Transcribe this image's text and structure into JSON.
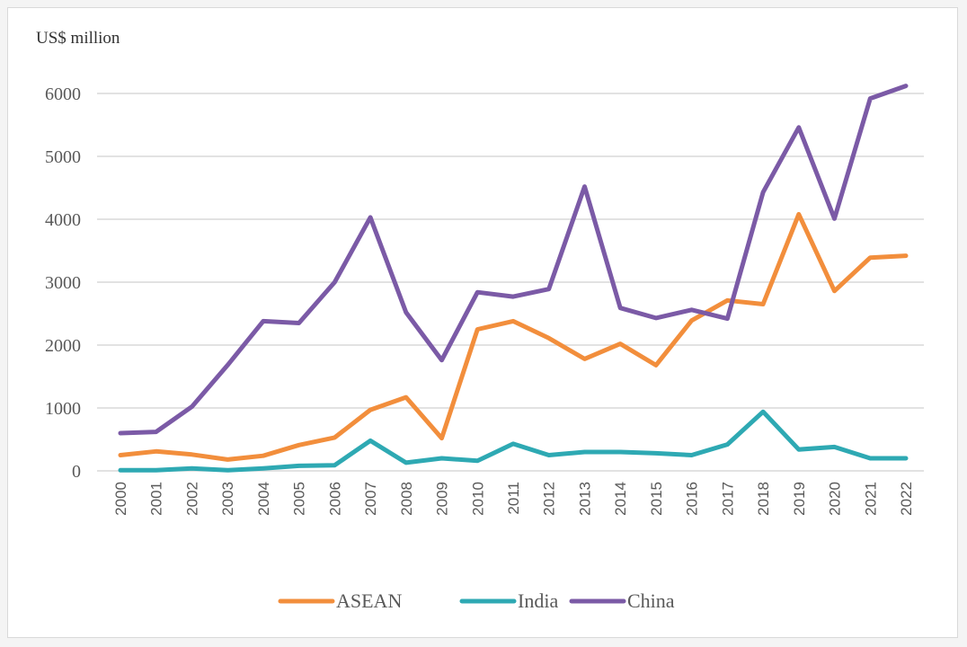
{
  "chart_data": {
    "type": "line",
    "title": "",
    "ylabel": "US$ million",
    "xlabel": "",
    "ylim": [
      0,
      6000
    ],
    "yticks": [
      "0",
      "1000",
      "2000",
      "3000",
      "4000",
      "5000",
      "6000"
    ],
    "grid": true,
    "legend_position": "bottom",
    "categories": [
      "2000",
      "2001",
      "2002",
      "2003",
      "2004",
      "2005",
      "2006",
      "2007",
      "2008",
      "2009",
      "2010",
      "2011",
      "2012",
      "2013",
      "2014",
      "2015",
      "2016",
      "2017",
      "2018",
      "2019",
      "2020",
      "2021",
      "2022"
    ],
    "series": [
      {
        "name": "ASEAN",
        "color": "#f28e3c",
        "values": [
          250,
          310,
          260,
          180,
          240,
          410,
          530,
          970,
          1170,
          520,
          2250,
          2380,
          2110,
          1780,
          2020,
          1680,
          2390,
          2710,
          2650,
          4080,
          2860,
          3390,
          3420
        ]
      },
      {
        "name": "India",
        "color": "#2ea9b3",
        "values": [
          10,
          10,
          40,
          10,
          40,
          80,
          90,
          480,
          130,
          200,
          160,
          430,
          250,
          300,
          300,
          280,
          250,
          420,
          940,
          340,
          380,
          200,
          200
        ]
      },
      {
        "name": "China",
        "color": "#7b5aa6",
        "values": [
          600,
          620,
          1020,
          1680,
          2380,
          2350,
          3000,
          4030,
          2520,
          1760,
          2840,
          2770,
          2890,
          4520,
          2590,
          2430,
          2560,
          2420,
          4430,
          5460,
          4010,
          5920,
          6120
        ]
      }
    ]
  }
}
